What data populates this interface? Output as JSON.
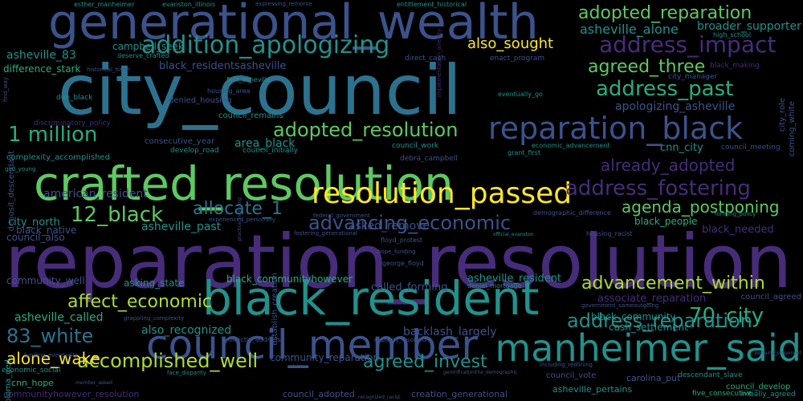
{
  "palette": {
    "background": "#000000",
    "colors": [
      "#440154",
      "#472c7a",
      "#3b528b",
      "#2c728e",
      "#21918c",
      "#28ae80",
      "#5ec962",
      "#addc30",
      "#fde725"
    ]
  },
  "words": [
    {
      "text": "reparation_resolution",
      "size": 92,
      "color": "#472c7a",
      "rot": 0
    },
    {
      "text": "city_council",
      "size": 86,
      "color": "#2c728e",
      "rot": 0
    },
    {
      "text": "generational_wealth",
      "size": 60,
      "color": "#3b528b",
      "rot": 0
    },
    {
      "text": "crafted_resolution",
      "size": 58,
      "color": "#5ec962",
      "rot": 0
    },
    {
      "text": "black_resident",
      "size": 58,
      "color": "#21918c",
      "rot": 0
    },
    {
      "text": "council_member",
      "size": 50,
      "color": "#3b528b",
      "rot": 0
    },
    {
      "text": "manheimer_said",
      "size": 46,
      "color": "#21918c",
      "rot": 0
    },
    {
      "text": "reparation_black",
      "size": 38,
      "color": "#3b528b",
      "rot": 0
    },
    {
      "text": "resolution_passed",
      "size": 36,
      "color": "#fde725",
      "rot": 0
    },
    {
      "text": "addition_apologizing",
      "size": 30,
      "color": "#21918c",
      "rot": 0
    },
    {
      "text": "address_impact",
      "size": 28,
      "color": "#472c7a",
      "rot": 0
    },
    {
      "text": "address_past",
      "size": 26,
      "color": "#28ae80",
      "rot": 0
    },
    {
      "text": "adopted_reparation",
      "size": 22,
      "color": "#5ec962",
      "rot": 0
    },
    {
      "text": "address_fostering",
      "size": 26,
      "color": "#472c7a",
      "rot": 0
    },
    {
      "text": "adopted_resolution",
      "size": 24,
      "color": "#5ec962",
      "rot": 0
    },
    {
      "text": "agreed_three",
      "size": 22,
      "color": "#5ec962",
      "rot": 0
    },
    {
      "text": "1 million",
      "size": 26,
      "color": "#28ae80",
      "rot": 0
    },
    {
      "text": "12_black",
      "size": 26,
      "color": "#5ec962",
      "rot": 0
    },
    {
      "text": "allocate_1",
      "size": 22,
      "color": "#2c728e",
      "rot": 0
    },
    {
      "text": "advancing_economic",
      "size": 24,
      "color": "#3b528b",
      "rot": 0
    },
    {
      "text": "agenda_postponing",
      "size": 20,
      "color": "#5ec962",
      "rot": 0
    },
    {
      "text": "already_adopted",
      "size": 20,
      "color": "#472c7a",
      "rot": 0
    },
    {
      "text": "advancement_within",
      "size": 22,
      "color": "#addc30",
      "rot": 0
    },
    {
      "text": "affect_economic",
      "size": 22,
      "color": "#addc30",
      "rot": 0
    },
    {
      "text": "70_city",
      "size": 26,
      "color": "#28ae80",
      "rot": 0
    },
    {
      "text": "83_white",
      "size": 24,
      "color": "#2c728e",
      "rot": 0
    },
    {
      "text": "address_reparation",
      "size": 24,
      "color": "#21918c",
      "rot": 0
    },
    {
      "text": "accomplished_well",
      "size": 24,
      "color": "#addc30",
      "rot": 0
    },
    {
      "text": "agreed_invest",
      "size": 22,
      "color": "#21918c",
      "rot": 0
    },
    {
      "text": "alone_wake",
      "size": 20,
      "color": "#fde725",
      "rot": 0
    },
    {
      "text": "also_sought",
      "size": 18,
      "color": "#fde725",
      "rot": 0
    },
    {
      "text": "asheville_alone",
      "size": 16,
      "color": "#21918c",
      "rot": 0
    },
    {
      "text": "broader_supporter",
      "size": 14,
      "color": "#21918c",
      "rot": 0
    },
    {
      "text": "asheville_83",
      "size": 14,
      "color": "#21918c",
      "rot": 0
    },
    {
      "text": "campbell_seek",
      "size": 12,
      "color": "#21918c",
      "rot": 0
    },
    {
      "text": "black_residentsasheville",
      "size": 13,
      "color": "#3b528b",
      "rot": 0
    },
    {
      "text": "difference_stark",
      "size": 12,
      "color": "#28ae80",
      "rot": 0
    },
    {
      "text": "apologizing_asheville",
      "size": 14,
      "color": "#3b528b",
      "rot": 0
    },
    {
      "text": "cnn_city",
      "size": 13,
      "color": "#21918c",
      "rot": 0
    },
    {
      "text": "area_black",
      "size": 14,
      "color": "#21918c",
      "rot": 0
    },
    {
      "text": "american_resident",
      "size": 14,
      "color": "#3b528b",
      "rot": 0
    },
    {
      "text": "city_north",
      "size": 13,
      "color": "#21918c",
      "rot": 0
    },
    {
      "text": "asheville_past",
      "size": 14,
      "color": "#21918c",
      "rot": 0
    },
    {
      "text": "asked_remove",
      "size": 14,
      "color": "#3b528b",
      "rot": 0
    },
    {
      "text": "black_people",
      "size": 12,
      "color": "#28ae80",
      "rot": 0
    },
    {
      "text": "black_needed",
      "size": 13,
      "color": "#472c7a",
      "rot": 0
    },
    {
      "text": "black_native",
      "size": 12,
      "color": "#3b528b",
      "rot": 0
    },
    {
      "text": "council_also",
      "size": 12,
      "color": "#3b528b",
      "rot": 0
    },
    {
      "text": "community_well",
      "size": 12,
      "color": "#3b528b",
      "rot": 0
    },
    {
      "text": "asking_state",
      "size": 12,
      "color": "#21918c",
      "rot": 0
    },
    {
      "text": "black_communityhowever",
      "size": 12,
      "color": "#28ae80",
      "rot": 0
    },
    {
      "text": "called_forming",
      "size": 13,
      "color": "#3b528b",
      "rot": 0
    },
    {
      "text": "asheville_resident",
      "size": 13,
      "color": "#21918c",
      "rot": 0
    },
    {
      "text": "associate_reparation",
      "size": 13,
      "color": "#472c7a",
      "rot": 0
    },
    {
      "text": "asheville_called",
      "size": 14,
      "color": "#28ae80",
      "rot": 0
    },
    {
      "text": "also_recognized",
      "size": 14,
      "color": "#21918c",
      "rot": 0
    },
    {
      "text": "backlash_largely",
      "size": 14,
      "color": "#3b528b",
      "rot": 0
    },
    {
      "text": "black_community",
      "size": 12,
      "color": "#21918c",
      "rot": 0
    },
    {
      "text": "cash_settlement",
      "size": 12,
      "color": "#21918c",
      "rot": 0
    },
    {
      "text": "community_reparation",
      "size": 12,
      "color": "#3b528b",
      "rot": 0
    },
    {
      "text": "cnn_hope",
      "size": 11,
      "color": "#28ae80",
      "rot": 0
    },
    {
      "text": "communityhowever_resolution",
      "size": 11,
      "color": "#472c7a",
      "rot": 0
    },
    {
      "text": "council_adopted",
      "size": 11,
      "color": "#3b528b",
      "rot": 0
    },
    {
      "text": "creation_generational",
      "size": 11,
      "color": "#3b528b",
      "rot": 0
    },
    {
      "text": "asheville_pertains",
      "size": 11,
      "color": "#21918c",
      "rot": 0
    },
    {
      "text": "five_consecutive",
      "size": 9,
      "color": "#28ae80",
      "rot": 0
    },
    {
      "text": "initially_agreed",
      "size": 9,
      "color": "#21918c",
      "rot": 0
    },
    {
      "text": "council_develop",
      "size": 10,
      "color": "#28ae80",
      "rot": 0
    },
    {
      "text": "council_agreed",
      "size": 10,
      "color": "#3b528b",
      "rot": 0
    },
    {
      "text": "descendant_slave",
      "size": 9,
      "color": "#21918c",
      "rot": 0
    },
    {
      "text": "carolina_put",
      "size": 11,
      "color": "#3b528b",
      "rot": 0
    },
    {
      "text": "council_vote",
      "size": 10,
      "color": "#3b528b",
      "rot": 0
    },
    {
      "text": "economic_social",
      "size": 9,
      "color": "#21918c",
      "rot": 0
    },
    {
      "text": "complexity_accomplished",
      "size": 10,
      "color": "#21918c",
      "rot": 0
    },
    {
      "text": "consecutive_year",
      "size": 10,
      "color": "#3b528b",
      "rot": 0
    },
    {
      "text": "council_remains",
      "size": 10,
      "color": "#21918c",
      "rot": 0
    },
    {
      "text": "denied_housing",
      "size": 10,
      "color": "#3b528b",
      "rot": 0
    },
    {
      "text": "discriminatory_policy",
      "size": 9,
      "color": "#472c7a",
      "rot": 0
    },
    {
      "text": "due_black",
      "size": 9,
      "color": "#21918c",
      "rot": 0
    },
    {
      "text": "first_asheville",
      "size": 8,
      "color": "#21918c",
      "rot": 0
    },
    {
      "text": "housing_area",
      "size": 8,
      "color": "#3b528b",
      "rot": 0
    },
    {
      "text": "develop_road",
      "size": 9,
      "color": "#21918c",
      "rot": 0
    },
    {
      "text": "council_initially",
      "size": 9,
      "color": "#21918c",
      "rot": 0
    },
    {
      "text": "council_work",
      "size": 9,
      "color": "#21918c",
      "rot": 0
    },
    {
      "text": "debra_campbell",
      "size": 9,
      "color": "#3b528b",
      "rot": 0
    },
    {
      "text": "economic_advancement",
      "size": 8,
      "color": "#21918c",
      "rot": 0
    },
    {
      "text": "council_meeting",
      "size": 9,
      "color": "#3b528b",
      "rot": 0
    },
    {
      "text": "grant_first",
      "size": 8,
      "color": "#21918c",
      "rot": 0
    },
    {
      "text": "city_manager",
      "size": 9,
      "color": "#3b528b",
      "rot": 0
    },
    {
      "text": "black_making",
      "size": 9,
      "color": "#472c7a",
      "rot": 0
    },
    {
      "text": "high_school",
      "size": 8,
      "color": "#21918c",
      "rot": 0
    },
    {
      "text": "enact_program",
      "size": 9,
      "color": "#3b528b",
      "rot": 0
    },
    {
      "text": "direct_cash",
      "size": 9,
      "color": "#3b528b",
      "rot": 0
    },
    {
      "text": "esther_manheimer",
      "size": 8,
      "color": "#21918c",
      "rot": 0
    },
    {
      "text": "evanston_illinois",
      "size": 8,
      "color": "#21918c",
      "rot": 0
    },
    {
      "text": "expressing_remorse",
      "size": 7,
      "color": "#3b528b",
      "rot": 0
    },
    {
      "text": "entitlement_historical",
      "size": 8,
      "color": "#21918c",
      "rot": 0
    },
    {
      "text": "deserve_crafted",
      "size": 8,
      "color": "#21918c",
      "rot": 0
    },
    {
      "text": "historical_harm",
      "size": 7,
      "color": "#3b528b",
      "rot": 0
    },
    {
      "text": "eventually_go",
      "size": 8,
      "color": "#21918c",
      "rot": 0
    },
    {
      "text": "ged_young",
      "size": 7,
      "color": "#21918c",
      "rot": 0
    },
    {
      "text": "demographic_difference",
      "size": 8,
      "color": "#3b528b",
      "rot": 0
    },
    {
      "text": "housing_racist",
      "size": 8,
      "color": "#3b528b",
      "rot": 0
    },
    {
      "text": "floyd_protest",
      "size": 8,
      "color": "#3b528b",
      "rot": 0
    },
    {
      "text": "hope_funding",
      "size": 7,
      "color": "#3b528b",
      "rot": 0
    },
    {
      "text": "george_floyd",
      "size": 8,
      "color": "#3b528b",
      "rot": 0
    },
    {
      "text": "denial_mortgage",
      "size": 8,
      "color": "#21918c",
      "rot": 0
    },
    {
      "text": "experienced_personally",
      "size": 7,
      "color": "#3b528b",
      "rot": 0
    },
    {
      "text": "forming_policy",
      "size": 7,
      "color": "#21918c",
      "rot": 0
    },
    {
      "text": "fostering_generational",
      "size": 7,
      "color": "#3b528b",
      "rot": 0
    },
    {
      "text": "directly_address",
      "size": 8,
      "color": "#3b528b",
      "rot": 0
    },
    {
      "text": "including_redlining",
      "size": 7,
      "color": "#3b528b",
      "rot": 0
    },
    {
      "text": "face_disparity",
      "size": 7,
      "color": "#21918c",
      "rot": 0
    },
    {
      "text": "disparity_resolution",
      "size": 7,
      "color": "#3b528b",
      "rot": 0
    },
    {
      "text": "grappling_complexity",
      "size": 7,
      "color": "#3b528b",
      "rot": 0
    },
    {
      "text": "government_sameoutgoing",
      "size": 7,
      "color": "#3b528b",
      "rot": 0
    },
    {
      "text": "gentrificationthe_demographic",
      "size": 6,
      "color": "#3b528b",
      "rot": 0
    },
    {
      "text": "recognized_racist",
      "size": 6,
      "color": "#3b528b",
      "rot": 0
    },
    {
      "text": "official_evanston",
      "size": 6,
      "color": "#21918c",
      "rot": 0
    },
    {
      "text": "federal_government",
      "size": 7,
      "color": "#3b528b",
      "rot": 0
    },
    {
      "text": "funding_eventually",
      "size": 7,
      "color": "#3b528b",
      "rot": 0
    },
    {
      "text": "member_asked",
      "size": 6,
      "color": "#3b528b",
      "rot": 0
    },
    {
      "text": "pertains_proponent",
      "size": 6,
      "color": "#3b528b",
      "rot": 0
    },
    {
      "text": "diploma_ged",
      "size": 10,
      "color": "#21918c",
      "rot": -90
    },
    {
      "text": "establish_creation",
      "size": 10,
      "color": "#3b528b",
      "rot": -90
    },
    {
      "text": "deposit_descendant",
      "size": 10,
      "color": "#3b528b",
      "rot": -90
    },
    {
      "text": "coming_white",
      "size": 10,
      "color": "#3b528b",
      "rot": -90
    },
    {
      "text": "city_role",
      "size": 10,
      "color": "#3b528b",
      "rot": -90
    },
    {
      "text": "implementation_already",
      "size": 7,
      "color": "#472c7a",
      "rot": -90
    },
    {
      "text": "find_way",
      "size": 7,
      "color": "#3b528b",
      "rot": -90
    },
    {
      "text": "practice_including",
      "size": 6,
      "color": "#3b528b",
      "rot": -90
    },
    {
      "text": "hoped_find",
      "size": 7,
      "color": "#3b528b",
      "rot": -90
    }
  ]
}
